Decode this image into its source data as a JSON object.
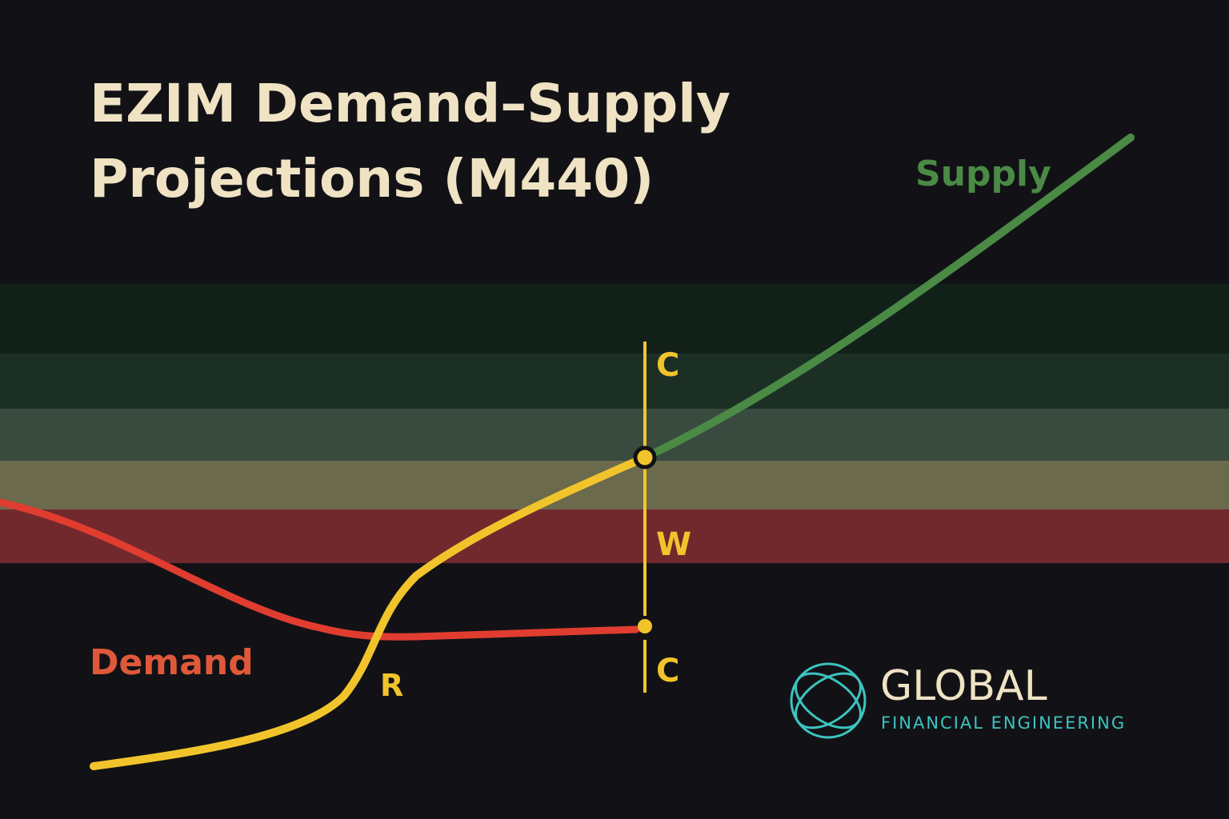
{
  "title": {
    "lines": [
      "EZIM Demand–Supply",
      "Projections (M440)"
    ]
  },
  "labels": {
    "supply": "Supply",
    "demand": "Demand",
    "r": "R",
    "c_top": "C",
    "w": "W",
    "c_bottom": "C"
  },
  "logo": {
    "name": "GLOBAL",
    "tagline": "FINANCIAL ENGINEERING"
  }
}
